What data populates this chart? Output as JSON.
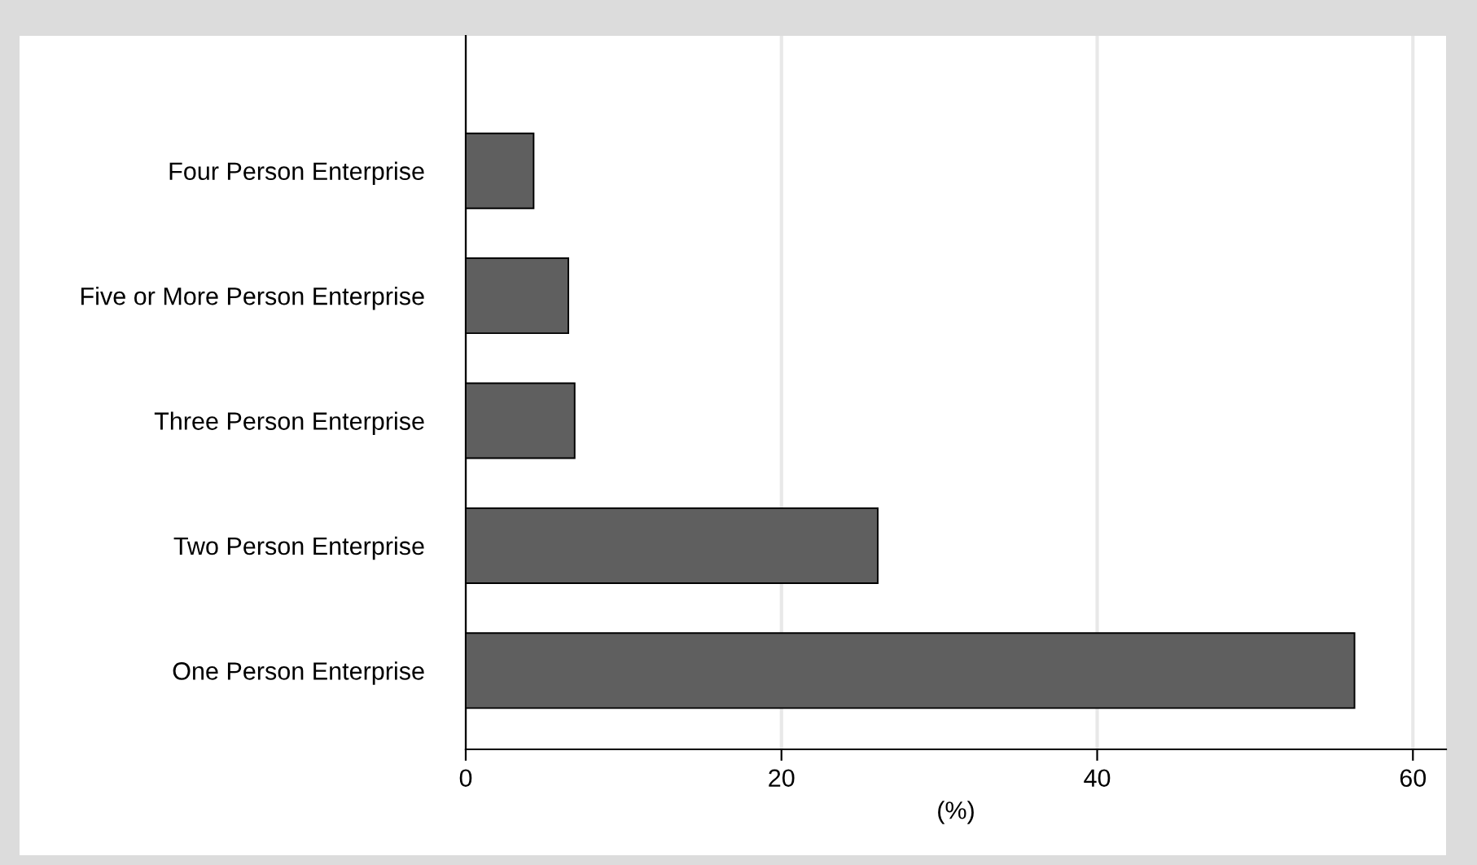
{
  "chart_data": {
    "type": "bar",
    "orientation": "horizontal",
    "categories": [
      "Four Person Enterprise",
      "Five or More Person Enterprise",
      "Three Person Enterprise",
      "Two Person Enterprise",
      "One Person Enterprise"
    ],
    "values": [
      4.3,
      6.5,
      6.9,
      26.1,
      56.3
    ],
    "color": "#5f5f5f",
    "xlabel": "(%)",
    "xlim": [
      0,
      62.1
    ],
    "xticks": [
      0,
      20,
      40,
      60
    ],
    "grid": "x"
  }
}
